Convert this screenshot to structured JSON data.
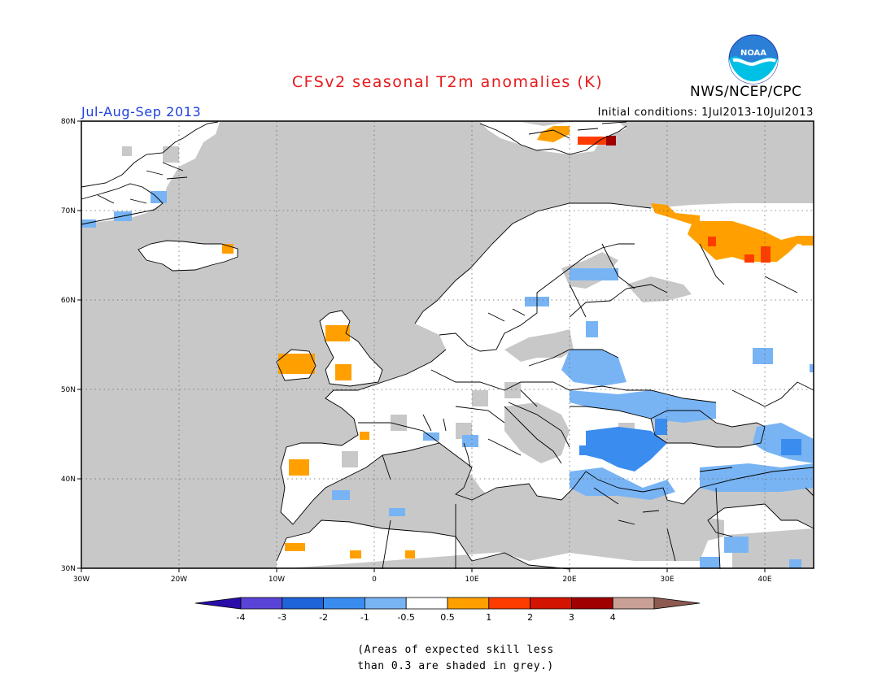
{
  "header": {
    "title": "CFSv2 seasonal T2m anomalies (K)",
    "agency": "NWS/NCEP/CPC",
    "logo_text": "NOAA",
    "season": "Jul-Aug-Sep 2013",
    "initial_conditions": "Initial conditions: 1Jul2013-10Jul2013"
  },
  "map": {
    "region": "Europe",
    "lon_range": [
      -30,
      45
    ],
    "lat_range": [
      30,
      80
    ],
    "lon_ticks": [
      {
        "value": -30,
        "label": "30W"
      },
      {
        "value": -20,
        "label": "20W"
      },
      {
        "value": -10,
        "label": "10W"
      },
      {
        "value": 0,
        "label": "0"
      },
      {
        "value": 10,
        "label": "10E"
      },
      {
        "value": 20,
        "label": "20E"
      },
      {
        "value": 30,
        "label": "30E"
      },
      {
        "value": 40,
        "label": "40E"
      }
    ],
    "lat_ticks": [
      {
        "value": 30,
        "label": "30N"
      },
      {
        "value": 40,
        "label": "40N"
      },
      {
        "value": 50,
        "label": "50N"
      },
      {
        "value": 60,
        "label": "60N"
      },
      {
        "value": 70,
        "label": "70N"
      },
      {
        "value": 80,
        "label": "80N"
      }
    ],
    "gridlines": "dotted",
    "colors": {
      "low_skill_grey": "#c8c8c8",
      "neutral": "#ffffff",
      "coast": "#000000"
    }
  },
  "legend": {
    "bins": [
      {
        "color": "#2a0ca8",
        "label": "-4"
      },
      {
        "color": "#5a44d8",
        "label": "-3"
      },
      {
        "color": "#1f64d8",
        "label": "-2"
      },
      {
        "color": "#3a8cee",
        "label": "-1"
      },
      {
        "color": "#78b4f4",
        "label": "-0.5"
      },
      {
        "color": "#ffffff",
        "label": "0.5"
      },
      {
        "color": "#ffa000",
        "label": "1"
      },
      {
        "color": "#ff3c00",
        "label": "2"
      },
      {
        "color": "#d21400",
        "label": "3"
      },
      {
        "color": "#a00000",
        "label": "4"
      },
      {
        "color": "#c8a096",
        "label": ""
      },
      {
        "color": "#8c5a50",
        "label": ""
      }
    ]
  },
  "footnote": {
    "line1": "(Areas of expected skill less",
    "line2": "than 0.3 are shaded in grey.)"
  }
}
